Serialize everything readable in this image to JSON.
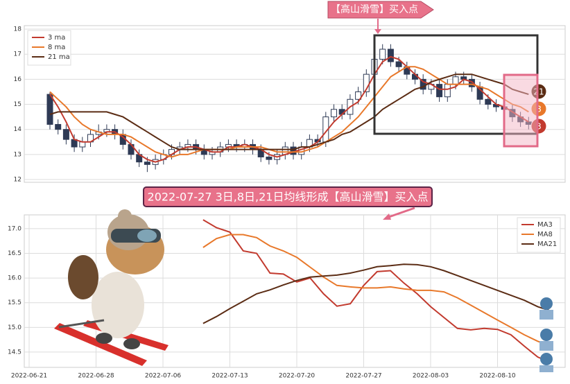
{
  "chart_data": [
    {
      "type": "candlestick",
      "annotation": "【高山滑雪】买入点",
      "end_labels": [
        "21",
        "8",
        "3"
      ],
      "legend": "upper left",
      "grid": true,
      "up_color": "#ffffff",
      "down_color": "#2e3a55",
      "ylim": [
        11.89,
        18.14
      ],
      "yticks": [
        12,
        13,
        14,
        15,
        16,
        17,
        18
      ],
      "open": [
        15.4,
        14.2,
        14.0,
        13.6,
        13.3,
        13.5,
        13.8,
        13.9,
        14.0,
        13.8,
        13.4,
        13.0,
        12.7,
        12.6,
        12.8,
        13.0,
        13.2,
        13.3,
        13.4,
        13.2,
        13.0,
        13.1,
        13.3,
        13.4,
        13.3,
        13.4,
        13.2,
        12.9,
        12.8,
        13.0,
        13.3,
        13.0,
        13.3,
        13.6,
        13.5,
        14.5,
        14.8,
        14.6,
        15.2,
        15.5,
        16.2,
        16.8,
        17.2,
        16.7,
        16.5,
        16.2,
        16.0,
        15.6,
        15.8,
        15.3,
        15.8,
        16.1,
        16.0,
        15.7,
        15.2,
        15.0,
        14.9,
        14.8,
        14.5,
        14.3
      ],
      "high": [
        15.5,
        14.4,
        14.2,
        13.8,
        13.7,
        14.0,
        14.2,
        14.2,
        14.2,
        14.0,
        13.6,
        13.2,
        12.9,
        13.0,
        13.2,
        13.4,
        13.5,
        13.6,
        13.6,
        13.4,
        13.3,
        13.5,
        13.6,
        13.6,
        13.6,
        13.6,
        13.4,
        13.1,
        13.2,
        13.5,
        13.5,
        13.5,
        13.8,
        13.8,
        14.7,
        15.0,
        15.0,
        15.4,
        15.7,
        16.4,
        17.0,
        17.4,
        17.4,
        16.9,
        16.7,
        16.4,
        16.2,
        16.0,
        16.0,
        16.0,
        16.3,
        16.3,
        16.2,
        15.9,
        15.4,
        15.2,
        15.1,
        15.0,
        14.7,
        14.5
      ],
      "low": [
        14.0,
        13.8,
        13.4,
        13.1,
        13.1,
        13.3,
        13.6,
        13.7,
        13.6,
        13.2,
        12.8,
        12.5,
        12.3,
        12.4,
        12.6,
        12.8,
        13.0,
        13.1,
        13.0,
        12.8,
        12.8,
        12.9,
        13.1,
        13.1,
        13.1,
        13.0,
        12.7,
        12.6,
        12.6,
        12.8,
        12.8,
        12.8,
        13.1,
        13.3,
        13.3,
        14.3,
        14.4,
        14.4,
        15.0,
        15.3,
        16.0,
        16.6,
        16.5,
        16.3,
        16.0,
        15.8,
        15.4,
        15.4,
        15.1,
        15.1,
        15.6,
        15.8,
        15.5,
        15.0,
        14.8,
        14.7,
        14.6,
        14.3,
        14.1,
        14.0
      ],
      "close": [
        14.2,
        14.0,
        13.6,
        13.3,
        13.5,
        13.8,
        13.9,
        14.0,
        13.8,
        13.4,
        13.0,
        12.7,
        12.6,
        12.8,
        13.0,
        13.2,
        13.3,
        13.4,
        13.2,
        13.0,
        13.1,
        13.3,
        13.4,
        13.3,
        13.4,
        13.2,
        12.9,
        12.8,
        13.0,
        13.3,
        13.0,
        13.3,
        13.6,
        13.5,
        14.5,
        14.8,
        14.6,
        15.2,
        15.5,
        16.2,
        16.8,
        17.2,
        16.7,
        16.5,
        16.2,
        16.0,
        15.6,
        15.8,
        15.3,
        15.8,
        16.1,
        16.0,
        15.7,
        15.2,
        15.0,
        14.9,
        14.8,
        14.5,
        14.3,
        14.2
      ],
      "series": [
        {
          "name": "3 ma",
          "color": "#c23a2e",
          "values": [
            15.4,
            14.9,
            14.3,
            13.6,
            13.5,
            13.5,
            13.7,
            13.9,
            13.9,
            13.7,
            13.4,
            13.0,
            12.8,
            12.7,
            12.8,
            13.0,
            13.2,
            13.3,
            13.3,
            13.2,
            13.1,
            13.1,
            13.3,
            13.3,
            13.4,
            13.3,
            13.2,
            13.0,
            12.9,
            13.0,
            13.1,
            13.2,
            13.3,
            13.5,
            13.9,
            14.3,
            14.6,
            14.9,
            15.1,
            15.6,
            16.2,
            16.7,
            16.9,
            16.8,
            16.5,
            16.2,
            15.9,
            15.8,
            15.6,
            15.6,
            15.7,
            16.0,
            15.9,
            15.6,
            15.3,
            15.0,
            14.9,
            14.7,
            14.5,
            14.3
          ]
        },
        {
          "name": "8 ma",
          "color": "#e8782a",
          "values": [
            15.5,
            15.2,
            14.9,
            14.5,
            14.2,
            14.0,
            13.9,
            13.8,
            13.8,
            13.8,
            13.7,
            13.5,
            13.3,
            13.1,
            13.0,
            12.9,
            13.0,
            13.0,
            13.1,
            13.2,
            13.2,
            13.2,
            13.2,
            13.3,
            13.3,
            13.3,
            13.3,
            13.2,
            13.1,
            13.1,
            13.1,
            13.1,
            13.2,
            13.3,
            13.5,
            13.7,
            13.9,
            14.2,
            14.5,
            14.9,
            15.3,
            15.7,
            16.1,
            16.3,
            16.5,
            16.5,
            16.4,
            16.2,
            16.0,
            15.8,
            15.8,
            15.8,
            15.8,
            15.7,
            15.6,
            15.4,
            15.2,
            15.0,
            14.9,
            14.7
          ]
        },
        {
          "name": "21 ma",
          "color": "#5b2c14",
          "values": [
            14.6,
            14.7,
            14.7,
            14.7,
            14.7,
            14.7,
            14.7,
            14.7,
            14.6,
            14.5,
            14.3,
            14.1,
            13.9,
            13.7,
            13.5,
            13.3,
            13.2,
            13.2,
            13.2,
            13.2,
            13.2,
            13.2,
            13.2,
            13.2,
            13.2,
            13.2,
            13.2,
            13.2,
            13.2,
            13.2,
            13.2,
            13.3,
            13.3,
            13.4,
            13.5,
            13.6,
            13.8,
            13.9,
            14.1,
            14.3,
            14.5,
            14.8,
            15.0,
            15.2,
            15.4,
            15.6,
            15.7,
            15.9,
            16.0,
            16.1,
            16.2,
            16.2,
            16.2,
            16.1,
            16.0,
            15.9,
            15.8,
            15.6,
            15.5,
            15.4
          ]
        }
      ]
    },
    {
      "type": "line",
      "title": "2022-07-27 3日,8日,21日均线形成【高山滑雪】买入点",
      "legend": "upper right",
      "grid": true,
      "ylim": [
        14.19,
        17.28
      ],
      "yticks": [
        14.5,
        {
          "value": 15,
          "label": "15.0"
        },
        15.5,
        {
          "value": 16,
          "label": "16.0"
        },
        16.5,
        {
          "value": 17,
          "label": "17.0"
        }
      ],
      "categories": [
        "2022-06-21",
        null,
        null,
        null,
        null,
        "2022-06-28",
        null,
        null,
        null,
        null,
        "2022-07-06",
        null,
        null,
        null,
        null,
        "2022-07-13",
        null,
        null,
        null,
        null,
        "2022-07-20",
        null,
        null,
        null,
        null,
        "2022-07-27",
        null,
        null,
        null,
        null,
        "2022-08-03",
        null,
        null,
        null,
        null,
        "2022-08-10",
        null,
        null,
        null,
        null,
        null
      ],
      "series": [
        {
          "name": "MA3",
          "color": "#c23a2e",
          "values": [
            null,
            null,
            null,
            null,
            null,
            null,
            null,
            null,
            null,
            null,
            null,
            null,
            null,
            17.18,
            17.02,
            16.93,
            16.55,
            16.5,
            16.1,
            16.08,
            15.92,
            16.0,
            15.68,
            15.43,
            15.48,
            15.85,
            16.13,
            16.15,
            15.9,
            15.68,
            15.42,
            15.2,
            14.98,
            14.95,
            14.98,
            14.96,
            14.85,
            14.62,
            14.4,
            14.28,
            null
          ]
        },
        {
          "name": "MA8",
          "color": "#e8782a",
          "values": [
            null,
            null,
            null,
            null,
            null,
            null,
            null,
            null,
            null,
            null,
            null,
            null,
            null,
            16.62,
            16.8,
            16.88,
            16.88,
            16.82,
            16.65,
            16.55,
            16.42,
            16.22,
            16.02,
            15.85,
            15.82,
            15.8,
            15.8,
            15.82,
            15.78,
            15.75,
            15.75,
            15.72,
            15.6,
            15.45,
            15.3,
            15.15,
            15.0,
            14.85,
            14.72,
            14.62,
            null
          ]
        },
        {
          "name": "MA21",
          "color": "#5b2c14",
          "values": [
            null,
            null,
            null,
            null,
            null,
            null,
            null,
            null,
            null,
            null,
            null,
            null,
            null,
            15.08,
            15.22,
            15.38,
            15.53,
            15.68,
            15.76,
            15.86,
            15.95,
            16.02,
            16.04,
            16.06,
            16.1,
            16.16,
            16.23,
            16.25,
            16.28,
            16.27,
            16.23,
            16.15,
            16.05,
            15.95,
            15.85,
            15.75,
            15.65,
            15.55,
            15.42,
            15.33,
            null
          ]
        }
      ]
    }
  ]
}
